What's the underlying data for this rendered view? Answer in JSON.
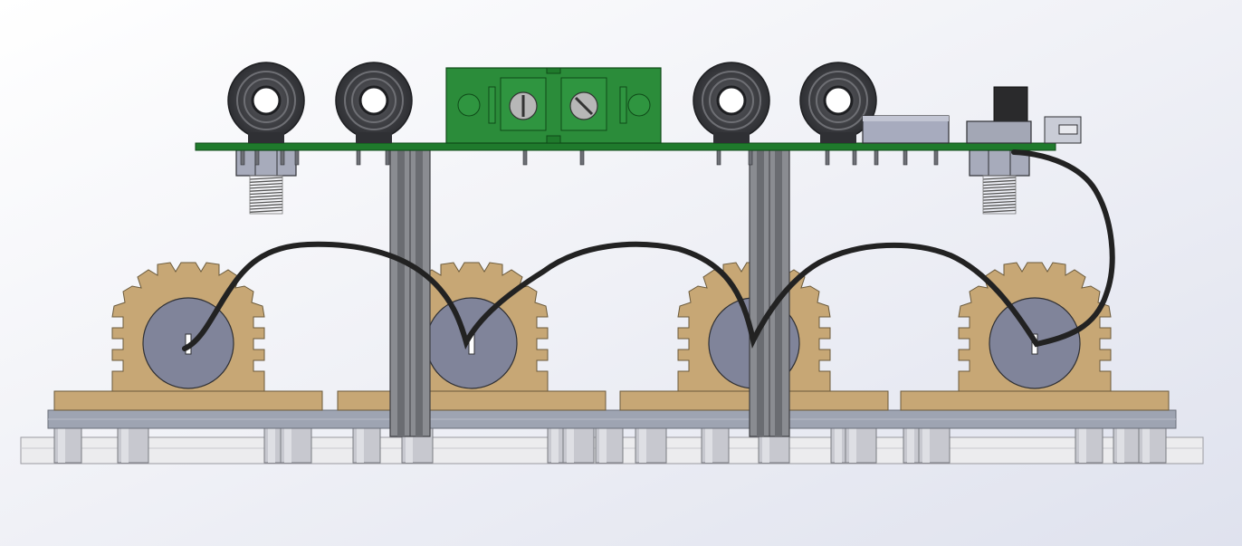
{
  "scene": {
    "description_visible_text": [],
    "colors": {
      "background_top": "#e3e6ef",
      "background_bottom": "#ffffff",
      "pcb_green": "#1f7a2c",
      "pcb_edge": "#0f4a18",
      "connector_green": "#2b8c3a",
      "jack_dark": "#3c3d41",
      "standoff_gray": "#7d7f84",
      "wood_tan": "#c7a775",
      "motor_gray": "#80849a",
      "base_plate": "#e8e8ea",
      "mid_plate": "#9ea4b2",
      "wire_black": "#222222"
    },
    "counts": {
      "audio_jacks": 4,
      "motor_mounts": 4,
      "standoff_posts": 2,
      "threaded_bolts": 2
    }
  }
}
